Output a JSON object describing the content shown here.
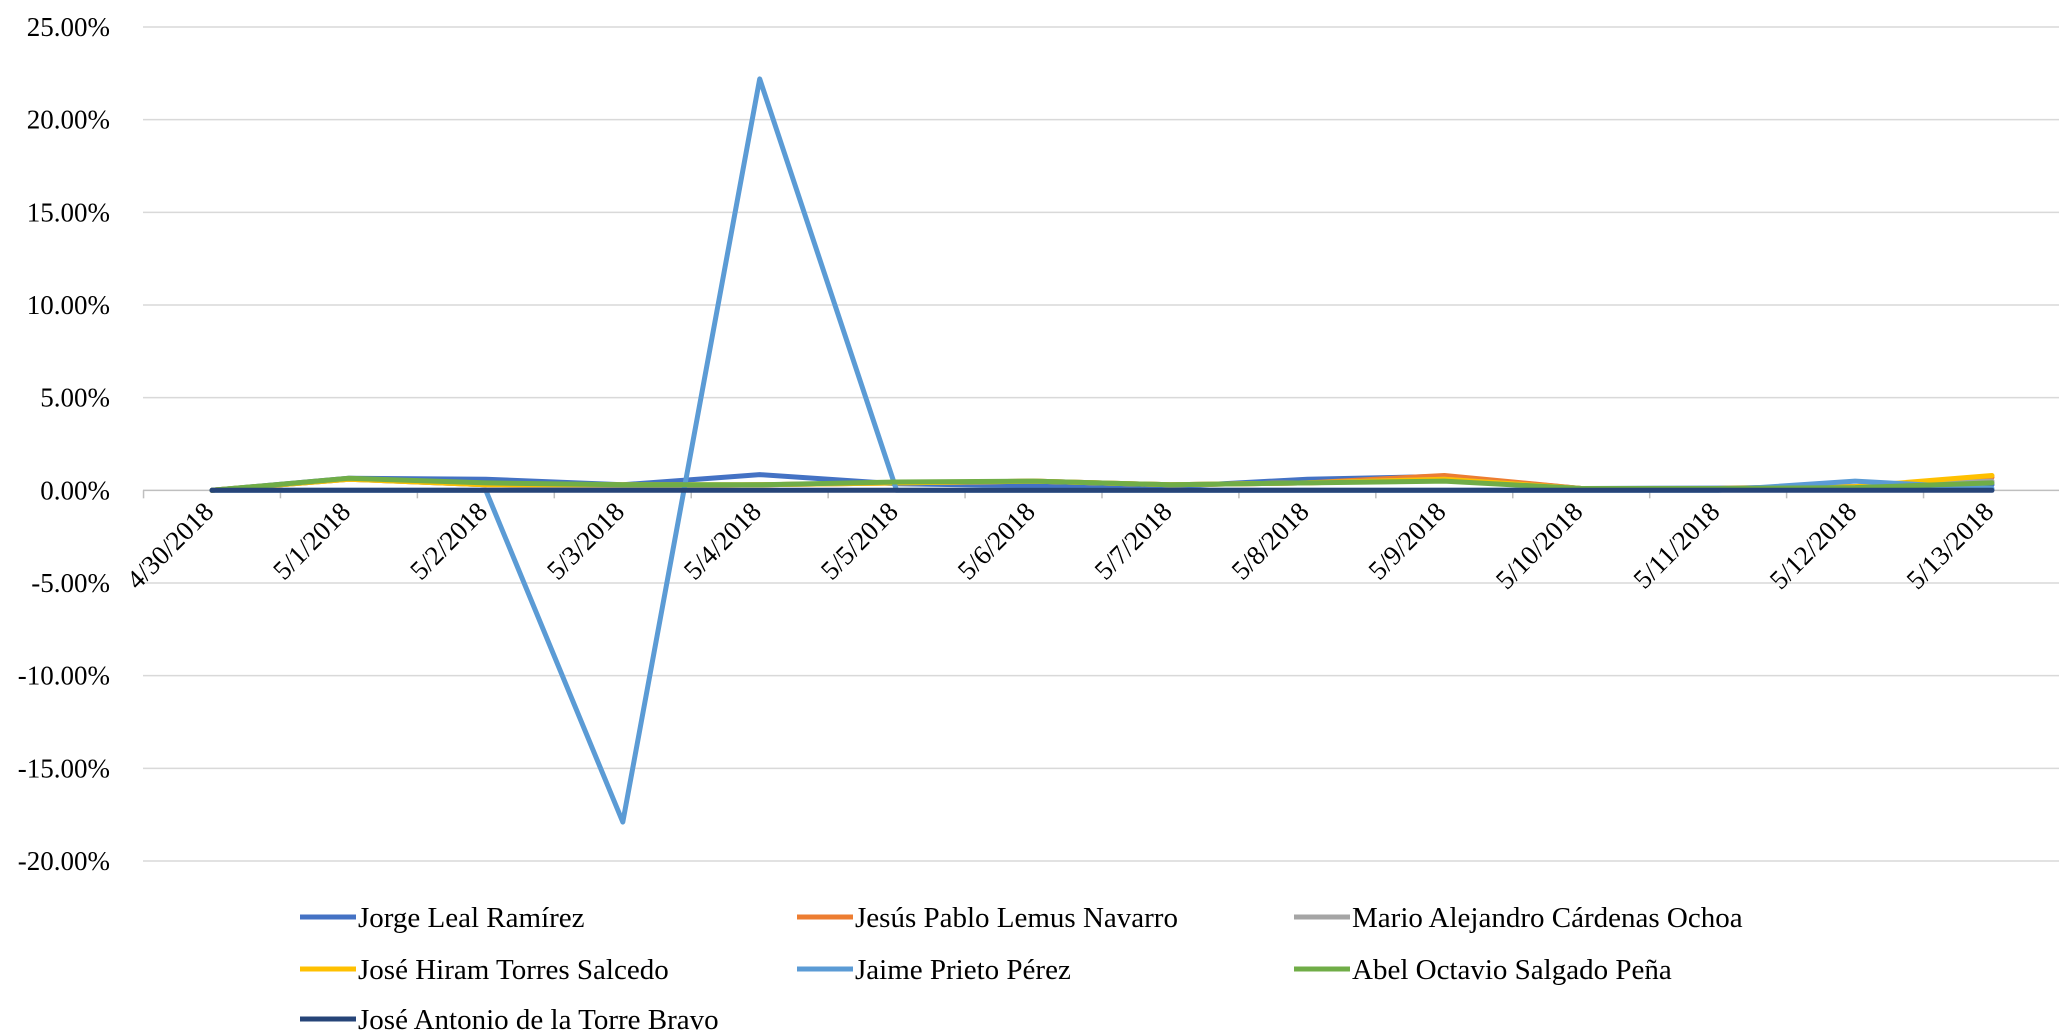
{
  "chart_data": {
    "type": "line",
    "title": "",
    "xlabel": "",
    "ylabel": "",
    "ylim": [
      -0.2,
      0.25
    ],
    "y_ticks": [
      0.25,
      0.2,
      0.15,
      0.1,
      0.05,
      0.0,
      -0.05,
      -0.1,
      -0.15,
      -0.2
    ],
    "y_tick_labels": [
      "25.00%",
      "20.00%",
      "15.00%",
      "10.00%",
      "5.00%",
      "0.00%",
      "-5.00%",
      "-10.00%",
      "-15.00%",
      "-20.00%"
    ],
    "categories": [
      "4/30/2018",
      "5/1/2018",
      "5/2/2018",
      "5/3/2018",
      "5/4/2018",
      "5/5/2018",
      "5/6/2018",
      "5/7/2018",
      "5/8/2018",
      "5/9/2018",
      "5/10/2018",
      "5/11/2018",
      "5/12/2018",
      "5/13/2018"
    ],
    "grid": true,
    "legend_position": "bottom",
    "series": [
      {
        "name": "Jorge Leal Ramírez",
        "color": "#4472C4",
        "values": [
          0.0,
          0.0065,
          0.006,
          0.003,
          0.0085,
          0.0035,
          0.0025,
          0.002,
          0.006,
          0.0075,
          0.001,
          0.0012,
          0.002,
          0.003
        ]
      },
      {
        "name": "Jesús Pablo Lemus Navarro",
        "color": "#ED7D31",
        "values": [
          0.0,
          0.006,
          0.003,
          0.002,
          0.003,
          0.004,
          0.005,
          0.003,
          0.004,
          0.008,
          0.001,
          0.001,
          0.002,
          0.007
        ]
      },
      {
        "name": "Mario Alejandro Cárdenas Ochoa",
        "color": "#A5A5A5",
        "values": [
          0.0,
          0.006,
          0.003,
          0.002,
          0.003,
          0.004,
          0.005,
          0.003,
          0.004,
          0.006,
          0.001,
          0.001,
          0.002,
          0.005
        ]
      },
      {
        "name": "José Hiram Torres Salcedo",
        "color": "#FFC000",
        "values": [
          0.0,
          0.006,
          0.003,
          0.003,
          0.003,
          0.004,
          0.005,
          0.003,
          0.004,
          0.006,
          0.001,
          0.001,
          0.002,
          0.008
        ]
      },
      {
        "name": "Jaime Prieto Pérez",
        "color": "#5B9BD5",
        "values": [
          0.0,
          0.0,
          0.0,
          -0.179,
          0.222,
          0.0,
          0.0,
          0.0,
          0.0,
          0.0,
          0.0,
          0.0,
          0.005,
          0.001
        ]
      },
      {
        "name": "Abel Octavio Salgado Peña",
        "color": "#70AD47",
        "values": [
          0.0,
          0.0065,
          0.004,
          0.003,
          0.003,
          0.0045,
          0.005,
          0.003,
          0.004,
          0.005,
          0.001,
          0.001,
          0.0015,
          0.004
        ]
      },
      {
        "name": "José Antonio de la Torre Bravo",
        "color": "#264478",
        "values": [
          0.0,
          0.0,
          0.0,
          0.0,
          0.0,
          0.0,
          0.0,
          0.0,
          0.0,
          0.0,
          0.0,
          0.0,
          0.0,
          0.0
        ]
      }
    ]
  }
}
